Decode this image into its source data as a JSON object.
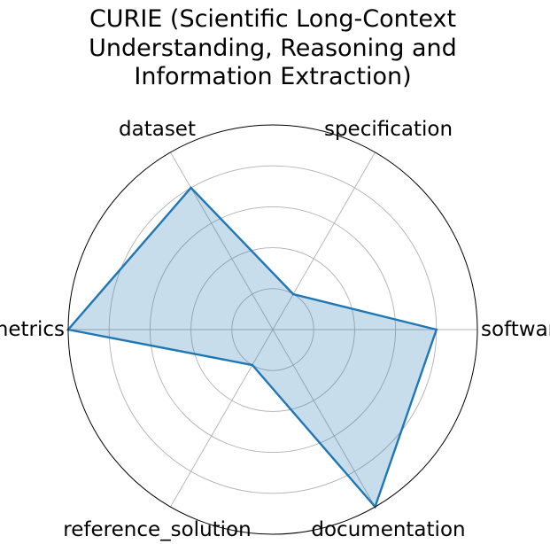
{
  "chart_data": {
    "type": "radar",
    "title": "CURIE (Scientific Long-Context\nUnderstanding, Reasoning and\nInformation Extraction)",
    "categories": [
      "software",
      "specification",
      "dataset",
      "metrics",
      "reference_solution",
      "documentation"
    ],
    "series": [
      {
        "values": [
          0.8,
          0.2,
          0.8,
          1.0,
          0.2,
          1.0
        ]
      }
    ],
    "rlim": [
      0,
      1.0
    ],
    "rgrid": [
      0.2,
      0.4,
      0.6,
      0.8,
      1.0
    ],
    "grid": true,
    "legend": "none",
    "colors": {
      "line": "#1f77b4",
      "fill": "#1f77b4",
      "fill_opacity": 0.25,
      "grid": "#b0b0b0",
      "frame": "#000000"
    }
  }
}
